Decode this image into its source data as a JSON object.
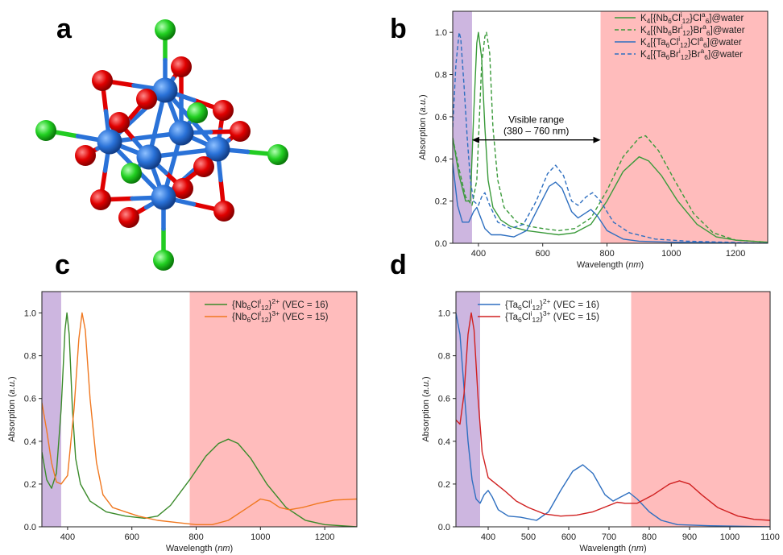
{
  "panels": {
    "a": {
      "letter": "a"
    },
    "b": {
      "letter": "b"
    },
    "c": {
      "letter": "c"
    },
    "d": {
      "letter": "d"
    }
  },
  "molecule": {
    "description_colors": {
      "metal": "#2a72d8",
      "oxygen": "#e00000",
      "chlorine": "#22d022",
      "bond_red": "#e00000",
      "bond_blue": "#2a72d8",
      "bond_green": "#22cc22"
    }
  },
  "chart_data": [
    {
      "panel": "b",
      "type": "line",
      "xlabel": "Wavelength (nm)",
      "ylabel": "Absorption (a.u.)",
      "xlim": [
        320,
        1300
      ],
      "ylim": [
        0,
        1.1
      ],
      "xticks": [
        400,
        600,
        800,
        1000,
        1200
      ],
      "yticks": [
        0.0,
        0.2,
        0.4,
        0.6,
        0.8,
        1.0
      ],
      "uv_band": [
        320,
        380
      ],
      "nir_band": [
        780,
        1300
      ],
      "annotation": {
        "line1": "Visible range",
        "line2": "(380 – 760 nm)",
        "arrow_from": 380,
        "arrow_to": 780,
        "y": 0.49
      },
      "series": [
        {
          "name": "K4[{Nb6Cli12}Cla6]@water",
          "color": "#3a9a3a",
          "dash": false,
          "points": [
            [
              320,
              0.5
            ],
            [
              340,
              0.32
            ],
            [
              360,
              0.2
            ],
            [
              375,
              0.2
            ],
            [
              385,
              0.6
            ],
            [
              395,
              0.95
            ],
            [
              400,
              1.0
            ],
            [
              410,
              0.88
            ],
            [
              420,
              0.55
            ],
            [
              430,
              0.3
            ],
            [
              445,
              0.17
            ],
            [
              470,
              0.11
            ],
            [
              500,
              0.08
            ],
            [
              550,
              0.06
            ],
            [
              600,
              0.05
            ],
            [
              650,
              0.04
            ],
            [
              700,
              0.05
            ],
            [
              750,
              0.09
            ],
            [
              800,
              0.2
            ],
            [
              850,
              0.34
            ],
            [
              900,
              0.41
            ],
            [
              930,
              0.39
            ],
            [
              970,
              0.32
            ],
            [
              1020,
              0.2
            ],
            [
              1080,
              0.09
            ],
            [
              1140,
              0.03
            ],
            [
              1200,
              0.015
            ],
            [
              1300,
              0.005
            ]
          ]
        },
        {
          "name": "K4[{Nb6Bri12}Bra6]@water",
          "color": "#3a9a3a",
          "dash": true,
          "points": [
            [
              320,
              0.5
            ],
            [
              340,
              0.35
            ],
            [
              360,
              0.22
            ],
            [
              380,
              0.18
            ],
            [
              395,
              0.3
            ],
            [
              410,
              0.85
            ],
            [
              420,
              0.98
            ],
            [
              425,
              1.0
            ],
            [
              435,
              0.9
            ],
            [
              445,
              0.55
            ],
            [
              460,
              0.3
            ],
            [
              480,
              0.17
            ],
            [
              520,
              0.1
            ],
            [
              560,
              0.08
            ],
            [
              600,
              0.07
            ],
            [
              650,
              0.06
            ],
            [
              700,
              0.07
            ],
            [
              750,
              0.12
            ],
            [
              800,
              0.25
            ],
            [
              850,
              0.41
            ],
            [
              900,
              0.5
            ],
            [
              920,
              0.51
            ],
            [
              960,
              0.44
            ],
            [
              1010,
              0.3
            ],
            [
              1070,
              0.14
            ],
            [
              1130,
              0.05
            ],
            [
              1200,
              0.015
            ],
            [
              1300,
              0.005
            ]
          ]
        },
        {
          "name": "K4[{Ta6Cli12}Cla6]@water",
          "color": "#2e6fc0",
          "dash": false,
          "points": [
            [
              320,
              0.38
            ],
            [
              335,
              0.18
            ],
            [
              350,
              0.1
            ],
            [
              370,
              0.1
            ],
            [
              385,
              0.15
            ],
            [
              395,
              0.17
            ],
            [
              405,
              0.13
            ],
            [
              420,
              0.07
            ],
            [
              440,
              0.04
            ],
            [
              470,
              0.04
            ],
            [
              510,
              0.03
            ],
            [
              550,
              0.06
            ],
            [
              590,
              0.18
            ],
            [
              620,
              0.27
            ],
            [
              640,
              0.29
            ],
            [
              660,
              0.26
            ],
            [
              690,
              0.15
            ],
            [
              710,
              0.12
            ],
            [
              730,
              0.14
            ],
            [
              750,
              0.16
            ],
            [
              770,
              0.13
            ],
            [
              800,
              0.06
            ],
            [
              850,
              0.02
            ],
            [
              900,
              0.01
            ],
            [
              1000,
              0.005
            ],
            [
              1300,
              0.0
            ]
          ]
        },
        {
          "name": "K4[{Ta6Bri12}Bra6]@water",
          "color": "#2e6fc0",
          "dash": true,
          "points": [
            [
              320,
              0.55
            ],
            [
              330,
              0.85
            ],
            [
              340,
              1.0
            ],
            [
              345,
              0.97
            ],
            [
              355,
              0.75
            ],
            [
              365,
              0.5
            ],
            [
              375,
              0.3
            ],
            [
              385,
              0.2
            ],
            [
              400,
              0.18
            ],
            [
              410,
              0.22
            ],
            [
              420,
              0.24
            ],
            [
              435,
              0.18
            ],
            [
              460,
              0.1
            ],
            [
              500,
              0.07
            ],
            [
              540,
              0.09
            ],
            [
              580,
              0.2
            ],
            [
              615,
              0.33
            ],
            [
              640,
              0.37
            ],
            [
              665,
              0.32
            ],
            [
              690,
              0.2
            ],
            [
              710,
              0.18
            ],
            [
              735,
              0.22
            ],
            [
              755,
              0.24
            ],
            [
              780,
              0.2
            ],
            [
              820,
              0.1
            ],
            [
              870,
              0.05
            ],
            [
              950,
              0.02
            ],
            [
              1050,
              0.01
            ],
            [
              1300,
              0.0
            ]
          ]
        }
      ]
    },
    {
      "panel": "c",
      "type": "line",
      "xlabel": "Wavelength (nm)",
      "ylabel": "Absorption (a.u.)",
      "xlim": [
        320,
        1300
      ],
      "ylim": [
        0,
        1.1
      ],
      "xticks": [
        400,
        600,
        800,
        1000,
        1200
      ],
      "yticks": [
        0.0,
        0.2,
        0.4,
        0.6,
        0.8,
        1.0
      ],
      "uv_band": [
        320,
        380
      ],
      "nir_band": [
        780,
        1300
      ],
      "series": [
        {
          "name": "{Nb6Cli12}2+ (VEC = 16)",
          "color": "#3a8a2a",
          "dash": false,
          "points": [
            [
              320,
              0.35
            ],
            [
              335,
              0.22
            ],
            [
              350,
              0.18
            ],
            [
              365,
              0.25
            ],
            [
              380,
              0.55
            ],
            [
              392,
              0.92
            ],
            [
              398,
              1.0
            ],
            [
              405,
              0.9
            ],
            [
              415,
              0.55
            ],
            [
              425,
              0.32
            ],
            [
              440,
              0.2
            ],
            [
              470,
              0.12
            ],
            [
              520,
              0.07
            ],
            [
              580,
              0.05
            ],
            [
              640,
              0.04
            ],
            [
              680,
              0.05
            ],
            [
              720,
              0.1
            ],
            [
              780,
              0.22
            ],
            [
              830,
              0.33
            ],
            [
              870,
              0.39
            ],
            [
              900,
              0.41
            ],
            [
              930,
              0.39
            ],
            [
              970,
              0.32
            ],
            [
              1020,
              0.2
            ],
            [
              1080,
              0.09
            ],
            [
              1140,
              0.03
            ],
            [
              1200,
              0.01
            ],
            [
              1300,
              0.0
            ]
          ]
        },
        {
          "name": "{Nb6Cli12}3+ (VEC = 15)",
          "color": "#f07820",
          "dash": false,
          "points": [
            [
              320,
              0.58
            ],
            [
              335,
              0.45
            ],
            [
              350,
              0.3
            ],
            [
              365,
              0.21
            ],
            [
              380,
              0.2
            ],
            [
              400,
              0.24
            ],
            [
              420,
              0.55
            ],
            [
              435,
              0.88
            ],
            [
              445,
              1.0
            ],
            [
              455,
              0.92
            ],
            [
              470,
              0.6
            ],
            [
              490,
              0.3
            ],
            [
              510,
              0.15
            ],
            [
              540,
              0.09
            ],
            [
              580,
              0.07
            ],
            [
              620,
              0.05
            ],
            [
              680,
              0.03
            ],
            [
              740,
              0.02
            ],
            [
              800,
              0.01
            ],
            [
              850,
              0.01
            ],
            [
              900,
              0.03
            ],
            [
              950,
              0.08
            ],
            [
              1000,
              0.13
            ],
            [
              1030,
              0.12
            ],
            [
              1060,
              0.09
            ],
            [
              1090,
              0.08
            ],
            [
              1130,
              0.09
            ],
            [
              1180,
              0.11
            ],
            [
              1230,
              0.125
            ],
            [
              1300,
              0.13
            ]
          ]
        }
      ]
    },
    {
      "panel": "d",
      "type": "line",
      "xlabel": "Wavelength (nm)",
      "ylabel": "Absorption (a.u.)",
      "xlim": [
        320,
        1100
      ],
      "ylim": [
        0,
        1.1
      ],
      "xticks": [
        400,
        500,
        600,
        700,
        800,
        900,
        1000,
        1100
      ],
      "yticks": [
        0.0,
        0.2,
        0.4,
        0.6,
        0.8,
        1.0
      ],
      "uv_band": [
        320,
        380
      ],
      "nir_band": [
        755,
        1100
      ],
      "series": [
        {
          "name": "{Ta6Cli12}2+ (VEC = 16)",
          "color": "#2e6fc0",
          "dash": false,
          "points": [
            [
              320,
              1.0
            ],
            [
              330,
              0.9
            ],
            [
              340,
              0.65
            ],
            [
              350,
              0.4
            ],
            [
              360,
              0.22
            ],
            [
              370,
              0.13
            ],
            [
              380,
              0.11
            ],
            [
              390,
              0.15
            ],
            [
              400,
              0.17
            ],
            [
              410,
              0.14
            ],
            [
              425,
              0.08
            ],
            [
              450,
              0.05
            ],
            [
              480,
              0.045
            ],
            [
              520,
              0.03
            ],
            [
              550,
              0.07
            ],
            [
              580,
              0.17
            ],
            [
              610,
              0.26
            ],
            [
              635,
              0.29
            ],
            [
              660,
              0.25
            ],
            [
              690,
              0.15
            ],
            [
              710,
              0.12
            ],
            [
              730,
              0.14
            ],
            [
              750,
              0.16
            ],
            [
              770,
              0.13
            ],
            [
              800,
              0.07
            ],
            [
              830,
              0.03
            ],
            [
              870,
              0.01
            ],
            [
              950,
              0.005
            ],
            [
              1100,
              0.0
            ]
          ]
        },
        {
          "name": "{Ta6Cli12}3+ (VEC = 15)",
          "color": "#d02020",
          "dash": false,
          "points": [
            [
              320,
              0.5
            ],
            [
              330,
              0.48
            ],
            [
              340,
              0.62
            ],
            [
              350,
              0.9
            ],
            [
              358,
              1.0
            ],
            [
              365,
              0.92
            ],
            [
              375,
              0.6
            ],
            [
              385,
              0.35
            ],
            [
              400,
              0.23
            ],
            [
              420,
              0.2
            ],
            [
              440,
              0.17
            ],
            [
              470,
              0.12
            ],
            [
              500,
              0.09
            ],
            [
              540,
              0.06
            ],
            [
              580,
              0.05
            ],
            [
              620,
              0.055
            ],
            [
              660,
              0.07
            ],
            [
              700,
              0.1
            ],
            [
              720,
              0.115
            ],
            [
              740,
              0.11
            ],
            [
              770,
              0.11
            ],
            [
              810,
              0.15
            ],
            [
              850,
              0.2
            ],
            [
              875,
              0.215
            ],
            [
              900,
              0.2
            ],
            [
              930,
              0.15
            ],
            [
              970,
              0.09
            ],
            [
              1020,
              0.05
            ],
            [
              1060,
              0.035
            ],
            [
              1100,
              0.03
            ]
          ]
        }
      ]
    }
  ]
}
